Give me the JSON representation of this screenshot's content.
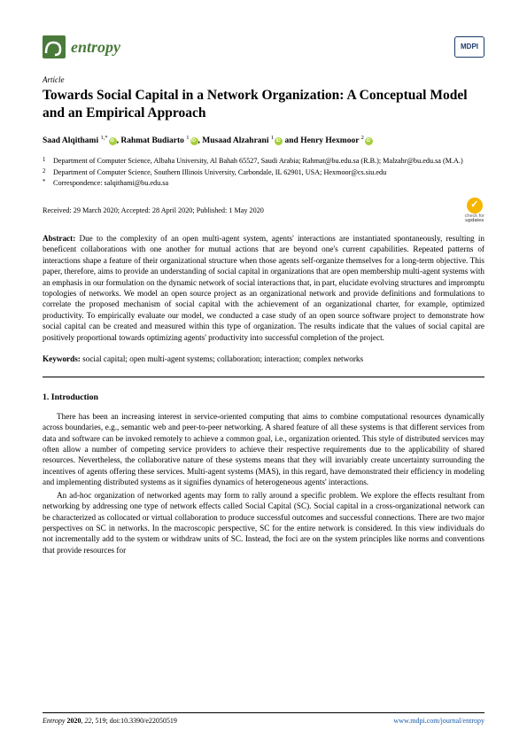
{
  "journal": {
    "name": "entropy",
    "logo_color": "#4a7a3a",
    "publisher_logo": "MDPI"
  },
  "article": {
    "type": "Article",
    "title": "Towards Social Capital in a Network Organization: A Conceptual Model and an Empirical Approach"
  },
  "authors_line": "Saad Alqithami ¹,*, Rahmat Budiarto ¹, Musaad Alzahrani ¹ and Henry Hexmoor ²",
  "authors": [
    {
      "name": "Saad Alqithami",
      "sup": "1,*",
      "orcid": true
    },
    {
      "name": "Rahmat Budiarto",
      "sup": "1",
      "orcid": true
    },
    {
      "name": "Musaad Alzahrani",
      "sup": "1",
      "orcid": true
    },
    {
      "name": "Henry Hexmoor",
      "sup": "2",
      "orcid": true
    }
  ],
  "joiner_comma": ", ",
  "joiner_and": " and ",
  "affiliations": [
    {
      "num": "1",
      "text": "Department of Computer Science, Albaha University, Al Bahah 65527, Saudi Arabia; Rahmat@bu.edu.sa (R.B.); Malzahr@bu.edu.sa (M.A.)"
    },
    {
      "num": "2",
      "text": "Department of Computer Science, Southern Illinois University, Carbondale, IL 62901, USA; Hexmoor@cs.siu.edu"
    },
    {
      "num": "*",
      "text": "Correspondence: salqithami@bu.edu.sa"
    }
  ],
  "dates": "Received: 29 March 2020; Accepted: 28 April 2020; Published: 1 May 2020",
  "check_updates": {
    "line1": "check for",
    "line2": "updates"
  },
  "abstract_label": "Abstract:",
  "abstract": "Due to the complexity of an open multi-agent system, agents' interactions are instantiated spontaneously, resulting in beneficent collaborations with one another for mutual actions that are beyond one's current capabilities. Repeated patterns of interactions shape a feature of their organizational structure when those agents self-organize themselves for a long-term objective. This paper, therefore, aims to provide an understanding of social capital in organizations that are open membership multi-agent systems with an emphasis in our formulation on the dynamic network of social interactions that, in part, elucidate evolving structures and impromptu topologies of networks. We model an open source project as an organizational network and provide definitions and formulations to correlate the proposed mechanism of social capital with the achievement of an organizational charter, for example, optimized productivity. To empirically evaluate our model, we conducted a case study of an open source software project to demonstrate how social capital can be created and measured within this type of organization. The results indicate that the values of social capital are positively proportional towards optimizing agents' productivity into successful completion of the project.",
  "keywords_label": "Keywords:",
  "keywords": "social capital; open multi-agent systems; collaboration; interaction; complex networks",
  "section1_heading": "1. Introduction",
  "section1_para1": "There has been an increasing interest in service-oriented computing that aims to combine computational resources dynamically across boundaries, e.g., semantic web and peer-to-peer networking. A shared feature of all these systems is that different services from data and software can be invoked remotely to achieve a common goal, i.e., organization oriented. This style of distributed services may often allow a number of competing service providers to achieve their respective requirements due to the applicability of shared resources. Nevertheless, the collaborative nature of these systems means that they will invariably create uncertainty surrounding the incentives of agents offering these services. Multi-agent systems (MAS), in this regard, have demonstrated their efficiency in modeling and implementing distributed systems as it signifies dynamics of heterogeneous agents' interactions.",
  "section1_para2": "An ad-hoc organization of networked agents may form to rally around a specific problem. We explore the effects resultant from networking by addressing one type of network effects called Social Capital (SC). Social capital in a cross-organizational network can be characterized as collocated or virtual collaboration to produce successful outcomes and successful connections. There are two major perspectives on SC in networks. In the macroscopic perspective, SC for the entire network is considered. In this view individuals do not incrementally add to the system or withdraw units of SC. Instead, the foci are on the system principles like norms and conventions that provide resources for",
  "footer": {
    "left": "Entropy 2020, 22, 519; doi:10.3390/e22050519",
    "right": "www.mdpi.com/journal/entropy"
  }
}
